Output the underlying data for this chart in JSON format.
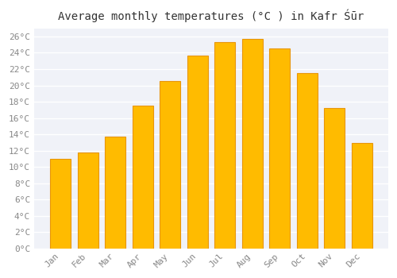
{
  "title": "Average monthly temperatures (°C ) in Kafr Śūr",
  "months": [
    "Jan",
    "Feb",
    "Mar",
    "Apr",
    "May",
    "Jun",
    "Jul",
    "Aug",
    "Sep",
    "Oct",
    "Nov",
    "Dec"
  ],
  "temperatures": [
    11.0,
    11.8,
    13.7,
    17.5,
    20.5,
    23.7,
    25.3,
    25.7,
    24.5,
    21.5,
    17.2,
    12.9
  ],
  "bar_color": "#FFBB00",
  "bar_edge_color": "#E8960A",
  "background_color": "#FFFFFF",
  "plot_bg_color": "#F0F2F8",
  "grid_color": "#FFFFFF",
  "text_color": "#888888",
  "ylim": [
    0,
    27
  ],
  "ytick_step": 2,
  "title_fontsize": 10,
  "tick_fontsize": 8,
  "font_family": "monospace"
}
